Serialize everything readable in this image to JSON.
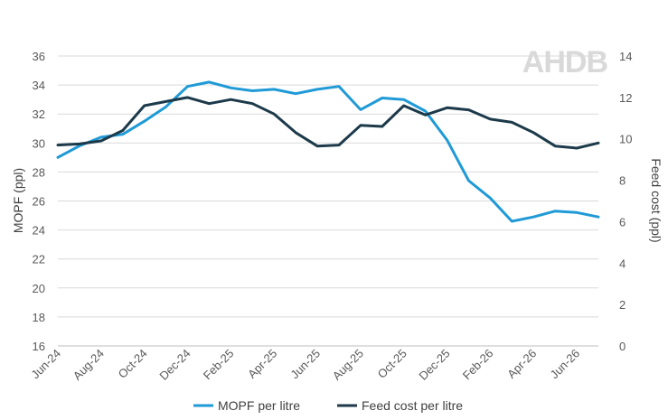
{
  "chart_data": {
    "type": "line",
    "title": "",
    "logo_text": "AHDB",
    "x_tick_labels": [
      "Jun-24",
      "Aug-24",
      "Oct-24",
      "Dec-24",
      "Feb-25",
      "Apr-25",
      "Jun-25",
      "Aug-25",
      "Oct-25",
      "Dec-25",
      "Feb-26",
      "Apr-26",
      "Jun-26"
    ],
    "y_left": {
      "label": "MOPF (ppl)",
      "min": 16,
      "max": 36,
      "step": 2
    },
    "y_right": {
      "label": "Feed cost (ppl)",
      "min": 0,
      "max": 14,
      "step": 2
    },
    "series": [
      {
        "name": "MOPF per litre",
        "axis": "left",
        "color": "#1f9ad6",
        "values": [
          29.0,
          29.8,
          30.4,
          30.6,
          31.5,
          32.5,
          33.9,
          34.2,
          33.8,
          33.6,
          33.7,
          33.4,
          33.7,
          33.9,
          32.3,
          33.1,
          33.0,
          32.2,
          30.2,
          27.4,
          26.2,
          24.6,
          24.9,
          25.3,
          25.2,
          24.9
        ]
      },
      {
        "name": "Feed cost per litre",
        "axis": "right",
        "color": "#1c3a4a",
        "values": [
          9.7,
          9.75,
          9.9,
          10.4,
          11.6,
          11.8,
          12.0,
          11.7,
          11.9,
          11.7,
          11.2,
          10.3,
          9.65,
          9.7,
          10.65,
          10.6,
          11.6,
          11.15,
          11.5,
          11.4,
          10.95,
          10.8,
          10.3,
          9.65,
          9.55,
          9.8
        ]
      }
    ],
    "grid": true,
    "legend_position": "bottom"
  }
}
